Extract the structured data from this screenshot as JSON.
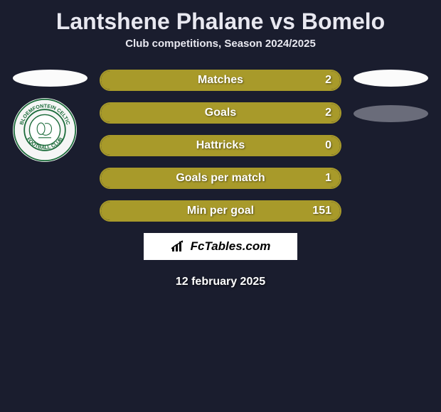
{
  "title": "Lantshene Phalane vs Bomelo",
  "subtitle": "Club competitions, Season 2024/2025",
  "left_player": {
    "oval_color": "#fbfbfb",
    "club_name": "Bloemfontein Celtic Football Club",
    "club_green": "#1b6b3a"
  },
  "right_player": {
    "oval1_color": "#fbfbfb",
    "oval2_color": "#6a6c7a"
  },
  "bars": [
    {
      "label": "Matches",
      "value": "2",
      "fill_color": "#a89a2a",
      "border_color": "#a89a2a"
    },
    {
      "label": "Goals",
      "value": "2",
      "fill_color": "#a89a2a",
      "border_color": "#a89a2a"
    },
    {
      "label": "Hattricks",
      "value": "0",
      "fill_color": "#a89a2a",
      "border_color": "#a89a2a"
    },
    {
      "label": "Goals per match",
      "value": "1",
      "fill_color": "#a89a2a",
      "border_color": "#a89a2a"
    },
    {
      "label": "Min per goal",
      "value": "151",
      "fill_color": "#a89a2a",
      "border_color": "#a89a2a"
    }
  ],
  "branding": "FcTables.com",
  "date": "12 february 2025",
  "bg_color": "#1a1d2e"
}
